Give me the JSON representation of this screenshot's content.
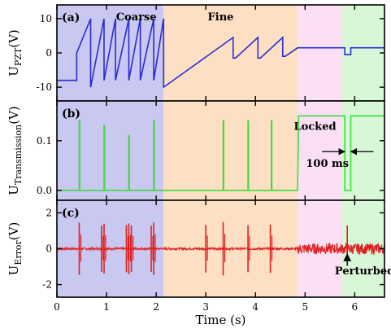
{
  "chart_data": {
    "type": "line",
    "xlabel": "Time (s)",
    "xlim": [
      0,
      6.6
    ],
    "x_ticks": [
      0,
      1,
      2,
      3,
      4,
      5,
      6
    ],
    "regions": [
      {
        "name": "coarse",
        "from": 0,
        "to": 2.15,
        "color": "#c8c8f0"
      },
      {
        "name": "fine",
        "from": 2.15,
        "to": 4.85,
        "color": "#fde0c4"
      },
      {
        "name": "locked",
        "from": 4.85,
        "to": 5.75,
        "color": "#fbe0f5"
      },
      {
        "name": "perturbed",
        "from": 5.75,
        "to": 6.6,
        "color": "#d8f7d6"
      }
    ],
    "panels": [
      {
        "id": "a",
        "label": "(a)",
        "ylabel_main": "U",
        "ylabel_sub": "PZT",
        "ylabel_unit": "(V)",
        "ylim": [
          -14,
          14
        ],
        "y_ticks": [
          -10,
          0,
          10
        ],
        "color": "#2b2bd4",
        "annotations": [
          {
            "text": "Coarse",
            "x": 1.6,
            "y": 10.5
          },
          {
            "text": "Fine",
            "x": 3.3,
            "y": 10.5
          }
        ],
        "series": [
          {
            "x": [
              0,
              0.4,
              0.4,
              0.68,
              0.68,
              0.95,
              0.95,
              1.18,
              1.18,
              1.45,
              1.45,
              1.68,
              1.68,
              1.95,
              1.95,
              2.15,
              2.15,
              3.55,
              3.55,
              3.6,
              4.05,
              4.05,
              4.1,
              4.55,
              4.55,
              4.6,
              4.85,
              5.8,
              5.8,
              5.92,
              5.92,
              6.6
            ],
            "y": [
              -8,
              -8,
              0,
              10,
              -10,
              10,
              -8,
              10,
              -8,
              10,
              -8,
              10,
              -8,
              10,
              -8,
              10,
              -10,
              4.5,
              -1.5,
              -1.5,
              4.5,
              -1.5,
              -1.5,
              4.5,
              -1,
              -1,
              1.5,
              1.5,
              -0.5,
              -0.5,
              1.5,
              1.5
            ]
          }
        ]
      },
      {
        "id": "b",
        "label": "(b)",
        "ylabel_main": "U",
        "ylabel_sub": "Transmission",
        "ylabel_unit": "(V)",
        "ylim": [
          -0.02,
          0.18
        ],
        "y_ticks": [
          0.0,
          0.1
        ],
        "y_tick_labels": [
          "0.0",
          "0.1"
        ],
        "color": "#3ddc3d",
        "annotations": [
          {
            "text": "Locked",
            "x": 5.2,
            "y": 0.128
          },
          {
            "text": "100 ms",
            "x": 5.45,
            "y": 0.054
          }
        ],
        "arrow_gap": [
          5.8,
          5.92
        ],
        "arrow_y": 0.078,
        "series": [
          {
            "x": [
              0,
              0.45,
              0.45,
              0.46,
              0.46,
              0.95,
              0.95,
              0.96,
              0.96,
              1.45,
              1.45,
              1.46,
              1.46,
              1.95,
              1.95,
              1.96,
              1.96,
              3.35,
              3.35,
              3.36,
              3.36,
              3.85,
              3.85,
              3.86,
              3.86,
              4.32,
              4.32,
              4.33,
              4.33,
              4.85,
              4.87,
              5.8,
              5.8,
              5.92,
              5.92,
              6.6
            ],
            "y": [
              0,
              0,
              0.14,
              0.14,
              0,
              0,
              0.13,
              0.13,
              0,
              0,
              0.11,
              0.11,
              0,
              0,
              0.14,
              0.14,
              0,
              0,
              0.14,
              0.14,
              0,
              0,
              0.14,
              0.14,
              0,
              0,
              0.14,
              0.14,
              0,
              0,
              0.15,
              0.15,
              0,
              0,
              0.15,
              0.15
            ]
          }
        ]
      },
      {
        "id": "c",
        "label": "(c)",
        "ylabel_main": "U",
        "ylabel_sub": "Error",
        "ylabel_unit": "(V)",
        "ylim": [
          -2.7,
          2.7
        ],
        "y_ticks": [
          -2,
          0,
          2
        ],
        "color": "#e02020",
        "annotations": [
          {
            "text": "Perturbed",
            "x": 6.2,
            "y": -1.25
          }
        ],
        "arrow_to": {
          "x": 5.85,
          "y": -0.3
        },
        "arrow_from": {
          "x": 5.85,
          "y": -0.95
        },
        "burst_times": [
          0.45,
          0.9,
          0.95,
          1.4,
          1.45,
          1.5,
          1.9,
          1.95,
          3.0,
          3.35,
          3.85,
          4.3
        ],
        "burst_amp": 1.5,
        "noise_base": 0.06,
        "noise_locked": 0.3,
        "locked_from": 4.85,
        "perturb_time": 5.85
      }
    ]
  }
}
